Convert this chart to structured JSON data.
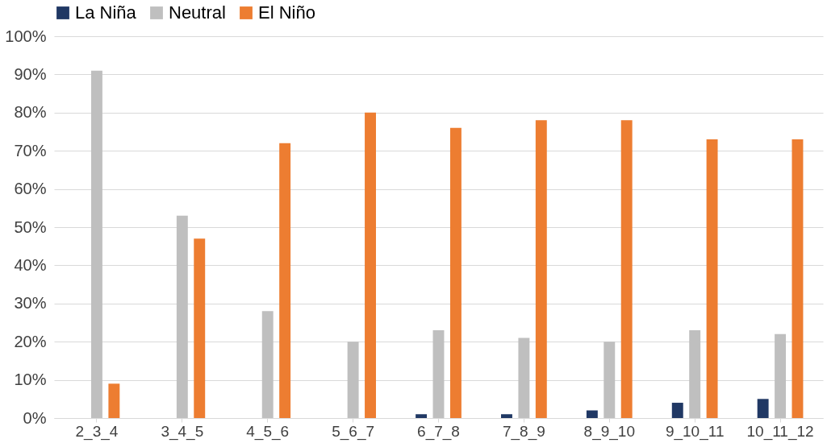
{
  "chart_data": {
    "type": "bar",
    "categories": [
      "2_3_4",
      "3_4_5",
      "4_5_6",
      "5_6_7",
      "6_7_8",
      "7_8_9",
      "8_9_10",
      "9_10_11",
      "10_11_12"
    ],
    "series": [
      {
        "name": "La Niña",
        "color": "#203864",
        "values": [
          0,
          0,
          0,
          0,
          1,
          1,
          2,
          4,
          5
        ]
      },
      {
        "name": "Neutral",
        "color": "#bfbfbf",
        "values": [
          91,
          53,
          28,
          20,
          23,
          21,
          20,
          23,
          22
        ]
      },
      {
        "name": "El Niño",
        "color": "#ed7d31",
        "values": [
          9,
          47,
          72,
          80,
          76,
          78,
          78,
          73,
          73
        ]
      }
    ],
    "ylim": [
      0,
      100
    ],
    "yticks": [
      {
        "value": 0,
        "label": "0%"
      },
      {
        "value": 10,
        "label": "10%"
      },
      {
        "value": 20,
        "label": "20%"
      },
      {
        "value": 30,
        "label": "30%"
      },
      {
        "value": 40,
        "label": "40%"
      },
      {
        "value": 50,
        "label": "50%"
      },
      {
        "value": 60,
        "label": "60%"
      },
      {
        "value": 70,
        "label": "70%"
      },
      {
        "value": 80,
        "label": "80%"
      },
      {
        "value": 90,
        "label": "90%"
      },
      {
        "value": 100,
        "label": "100%"
      }
    ],
    "grid": "y",
    "legend": "top"
  }
}
